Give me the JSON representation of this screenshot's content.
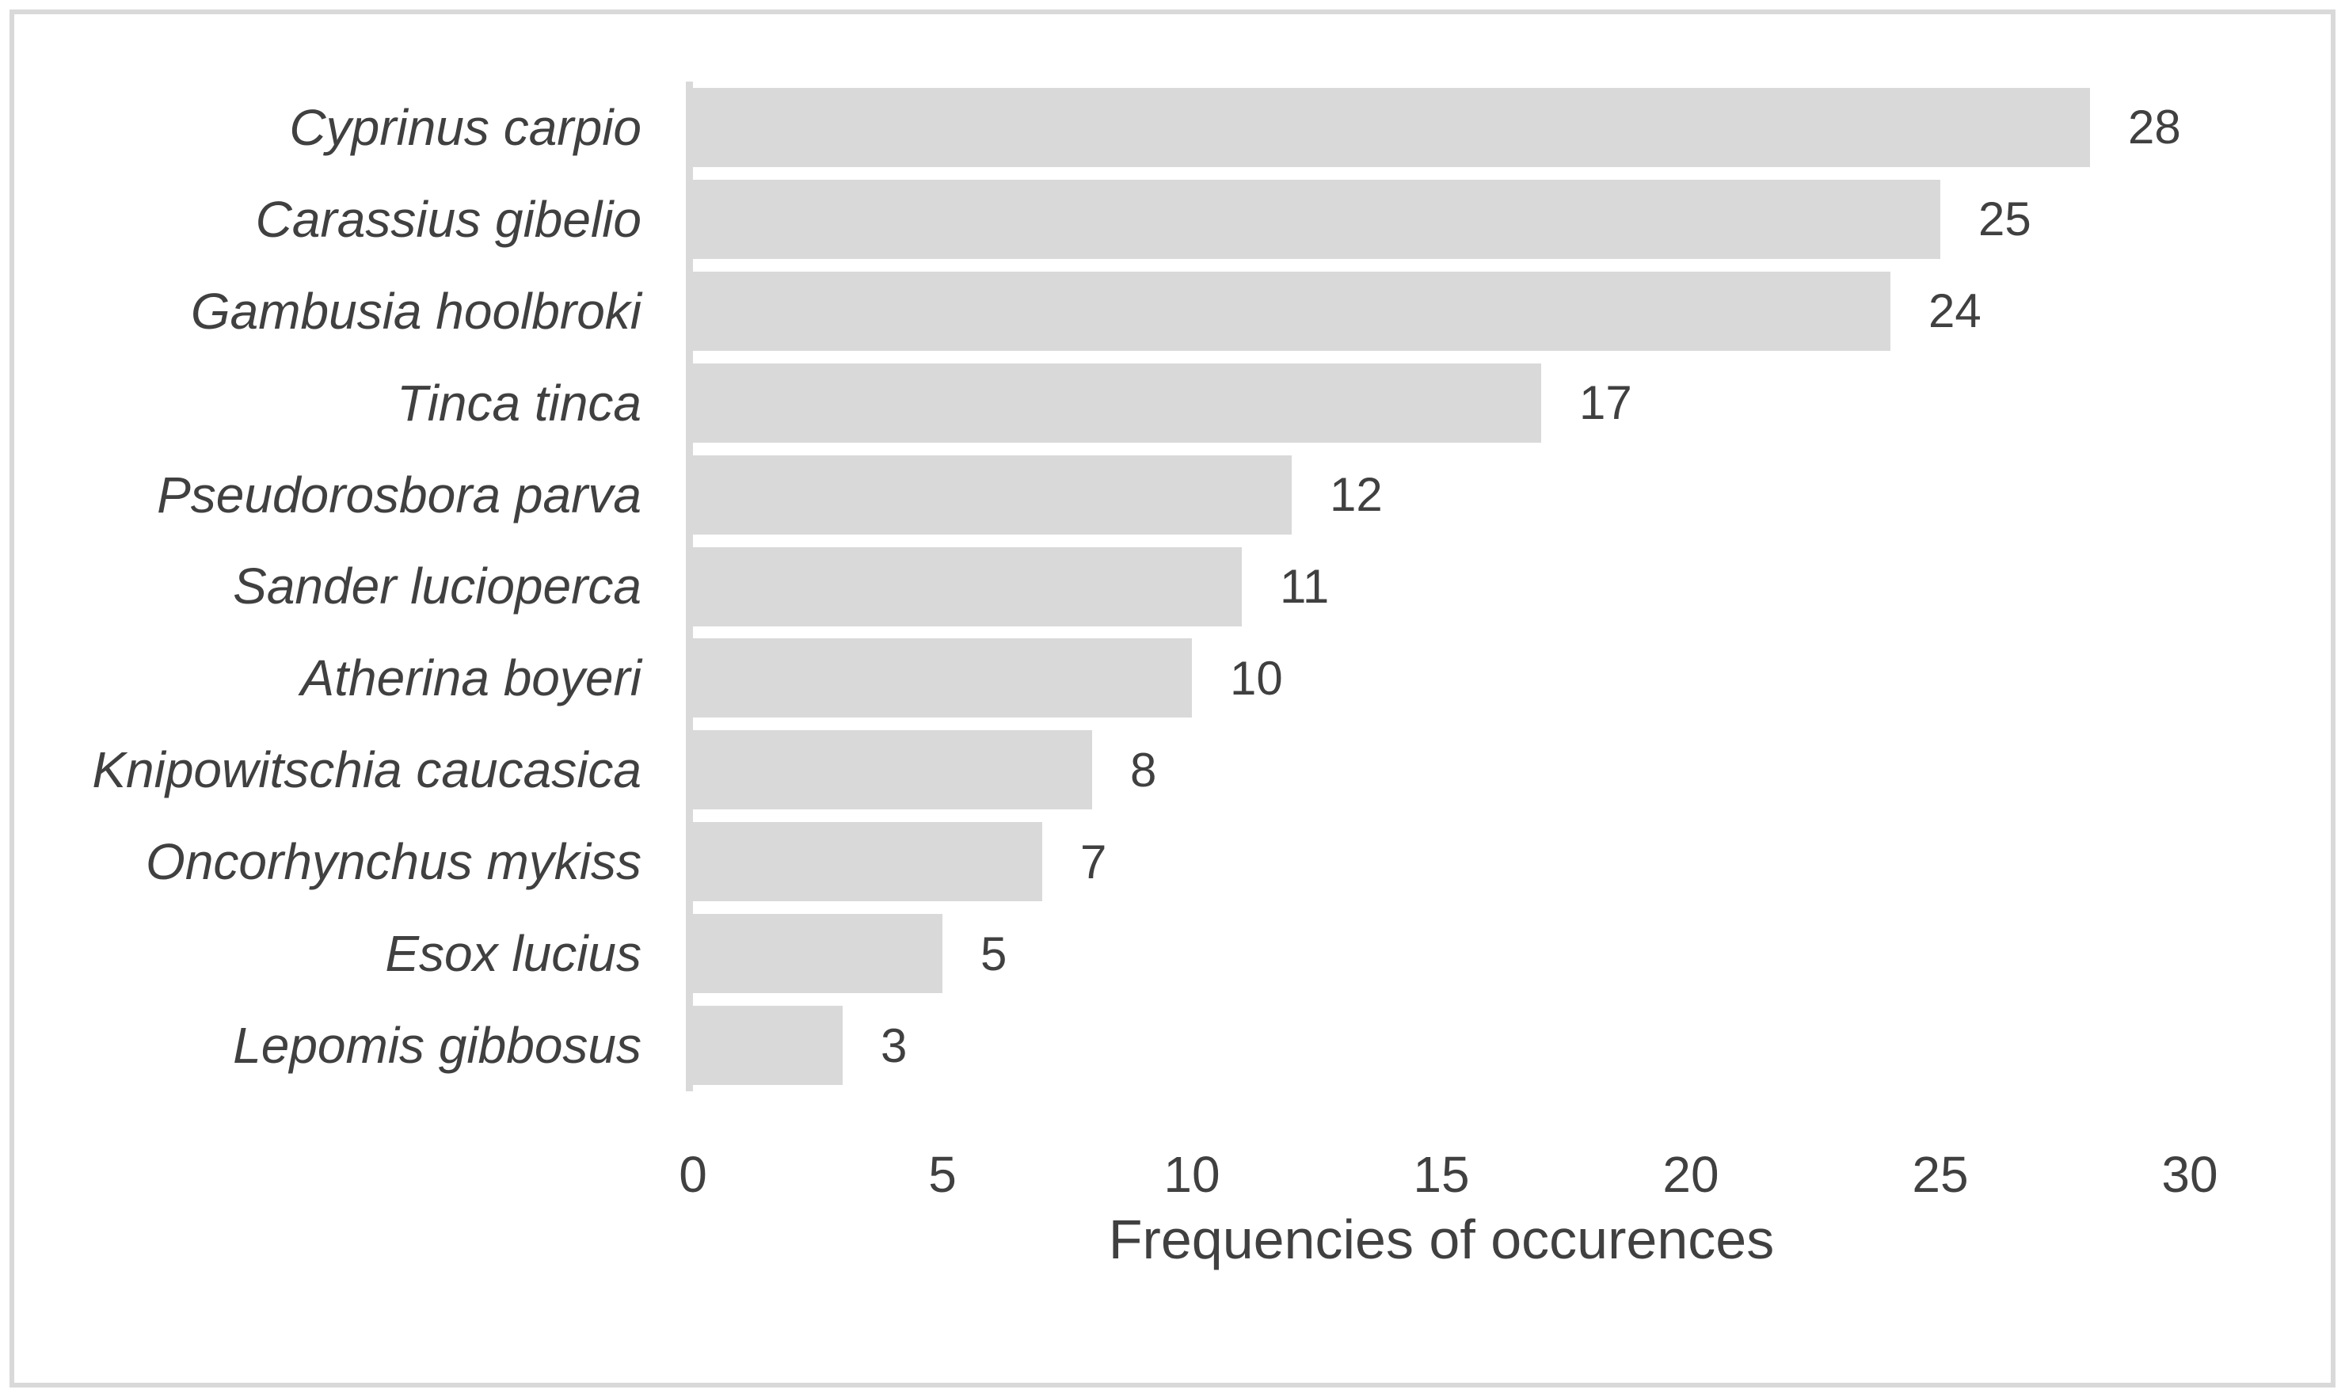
{
  "chart_data": {
    "type": "bar",
    "orientation": "horizontal",
    "title": "",
    "xlabel": "Frequencies of occurences",
    "ylabel": "",
    "categories": [
      "Cyprinus carpio",
      "Carassius gibelio",
      "Gambusia hoolbroki",
      "Tinca tinca",
      "Pseudorosbora parva",
      "Sander lucioperca",
      "Atherina boyeri",
      "Knipowitschia caucasica",
      "Oncorhynchus mykiss",
      "Esox lucius",
      "Lepomis gibbosus"
    ],
    "values": [
      28,
      25,
      24,
      17,
      12,
      11,
      10,
      8,
      7,
      5,
      3
    ],
    "data_labels": [
      28,
      25,
      24,
      17,
      12,
      11,
      10,
      8,
      7,
      5,
      3
    ],
    "xlim": [
      0,
      30
    ],
    "xticks": [
      0,
      5,
      10,
      15,
      20,
      25,
      30
    ],
    "grid": false,
    "legend": false,
    "bar_color": "#d9d9d9",
    "axis_line_color": "#d9d9d9",
    "text_color": "#404040",
    "border_color": "#d9d9d9",
    "background_color": "#ffffff"
  }
}
